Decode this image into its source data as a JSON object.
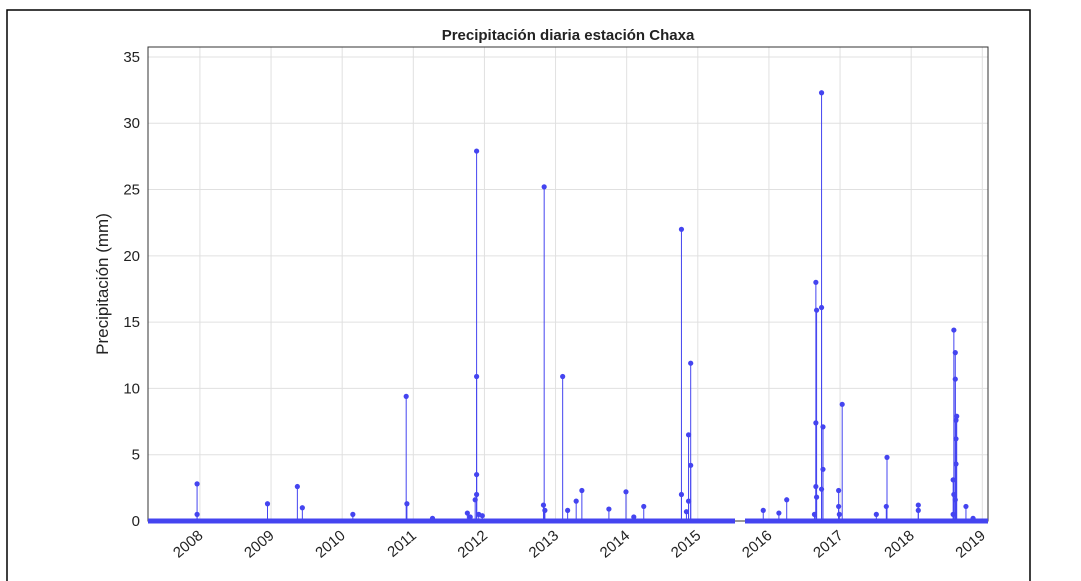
{
  "chart_data": {
    "type": "stem",
    "title": "Precipitación diaria estación Chaxa",
    "y_label": "Precipitación (mm)",
    "color": "#4444f0",
    "grid": true,
    "xlim": [
      2007.27,
      2019.08
    ],
    "xticks": [
      2008,
      2009,
      2010,
      2011,
      2012,
      2013,
      2014,
      2015,
      2016,
      2017,
      2018,
      2019
    ],
    "ylim": [
      0,
      35.75
    ],
    "yticks": [
      0,
      5,
      10,
      15,
      20,
      25,
      30,
      35
    ],
    "x": [
      2007.96,
      2007.96,
      2008.95,
      2009.37,
      2009.44,
      2010.15,
      2010.9,
      2010.91,
      2011.27,
      2011.76,
      2011.8,
      2011.89,
      2011.89,
      2011.89,
      2011.89,
      2011.87,
      2011.92,
      2011.97,
      2012.84,
      2012.83,
      2012.85,
      2013.1,
      2013.17,
      2013.29,
      2013.37,
      2013.75,
      2013.99,
      2014.1,
      2014.24,
      2014.77,
      2014.77,
      2014.84,
      2014.87,
      2014.9,
      2014.9,
      2014.87,
      2015.92,
      2016.14,
      2016.25,
      2016.66,
      2016.66,
      2016.67,
      2016.66,
      2016.67,
      2016.64,
      2016.74,
      2016.74,
      2016.76,
      2016.76,
      2016.74,
      2016.98,
      2016.98,
      2017.03,
      2016.99,
      2017.51,
      2017.66,
      2017.65,
      2018.1,
      2018.1,
      2018.6,
      2018.62,
      2018.62,
      2018.64,
      2018.63,
      2018.63,
      2018.63,
      2018.59,
      2018.6,
      2018.62,
      2018.59,
      2018.77,
      2018.87
    ],
    "values": [
      2.8,
      0.5,
      1.3,
      2.6,
      1.0,
      0.5,
      9.4,
      1.3,
      0.2,
      0.6,
      0.3,
      27.9,
      10.9,
      3.5,
      2.0,
      1.6,
      0.5,
      0.4,
      25.2,
      1.2,
      0.8,
      10.9,
      0.8,
      1.5,
      2.3,
      0.9,
      2.2,
      0.3,
      1.1,
      22.0,
      2.0,
      0.7,
      6.5,
      4.2,
      11.9,
      1.5,
      0.8,
      0.6,
      1.6,
      18.0,
      7.4,
      15.9,
      2.6,
      1.8,
      0.5,
      32.3,
      16.1,
      7.1,
      3.9,
      2.4,
      2.3,
      1.1,
      8.8,
      0.5,
      0.5,
      4.8,
      1.1,
      1.2,
      0.8,
      14.4,
      12.7,
      10.7,
      7.9,
      7.6,
      6.2,
      4.3,
      3.1,
      2.0,
      1.6,
      0.5,
      1.1,
      0.2
    ]
  }
}
